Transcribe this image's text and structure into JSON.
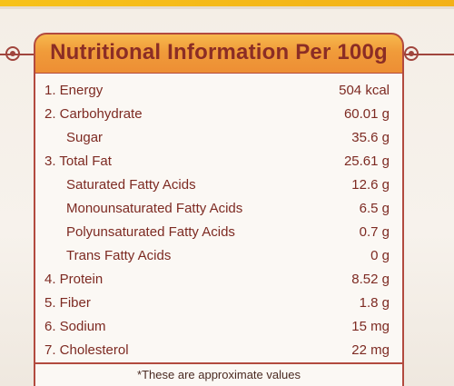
{
  "header": {
    "title": "Nutritional Information Per 100g"
  },
  "colors": {
    "accent": "#b24a3f",
    "banner": "#f0a03c",
    "text": "#7d2a22",
    "stripe": "#f7c21a"
  },
  "rows": [
    {
      "label": "1. Energy",
      "value": "504 kcal",
      "sub": false
    },
    {
      "label": "2. Carbohydrate",
      "value": "60.01 g",
      "sub": false
    },
    {
      "label": "Sugar",
      "value": "35.6 g",
      "sub": true
    },
    {
      "label": "3. Total Fat",
      "value": "25.61 g",
      "sub": false
    },
    {
      "label": "Saturated Fatty Acids",
      "value": "12.6 g",
      "sub": true
    },
    {
      "label": "Monounsaturated Fatty Acids",
      "value": "6.5 g",
      "sub": true
    },
    {
      "label": "Polyunsaturated Fatty Acids",
      "value": "0.7 g",
      "sub": true
    },
    {
      "label": "Trans Fatty Acids",
      "value": "0 g",
      "sub": true
    },
    {
      "label": "4. Protein",
      "value": "8.52 g",
      "sub": false
    },
    {
      "label": "5. Fiber",
      "value": "1.8 g",
      "sub": false
    },
    {
      "label": "6. Sodium",
      "value": "15 mg",
      "sub": false
    },
    {
      "label": "7. Cholesterol",
      "value": "22 mg",
      "sub": false
    }
  ],
  "footer": {
    "note": "*These are approximate values"
  }
}
